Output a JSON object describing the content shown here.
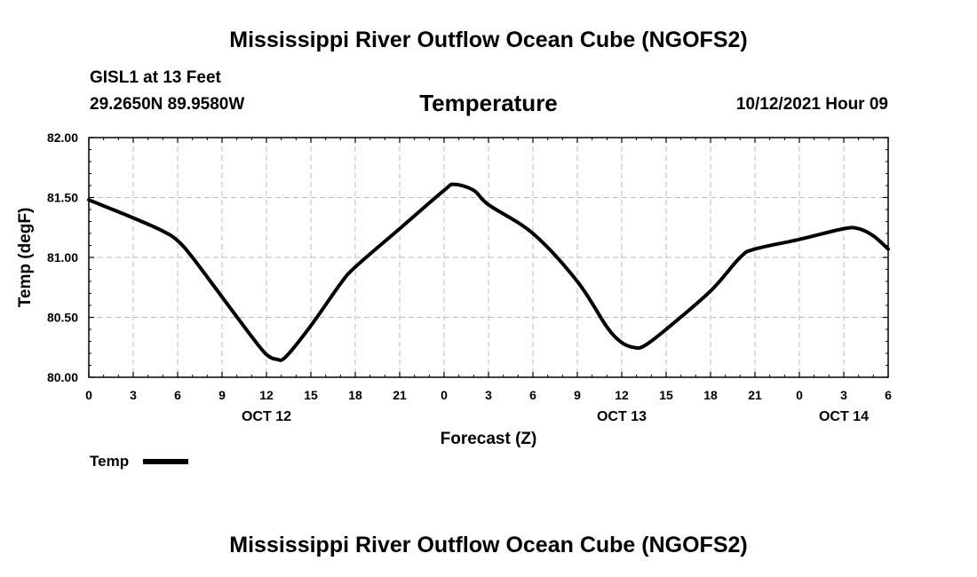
{
  "page": {
    "top_title": "Mississippi River Outflow Ocean Cube (NGOFS2)",
    "bottom_title": "Mississippi River Outflow Ocean Cube (NGOFS2)",
    "station": "GISL1 at 13 Feet",
    "coords": "29.2650N  89.9580W",
    "plot_title": "Temperature",
    "date": "10/12/2021 Hour 09"
  },
  "chart_data": {
    "type": "line",
    "title": "Temperature",
    "xlabel": "Forecast (Z)",
    "ylabel": "Temp (degF)",
    "ylim": [
      80.0,
      82.0
    ],
    "yticks": [
      "80.00",
      "80.50",
      "81.00",
      "81.50",
      "82.00"
    ],
    "xlim": [
      0,
      54
    ],
    "xticks": [
      "0",
      "3",
      "6",
      "9",
      "12",
      "15",
      "18",
      "21",
      "0",
      "3",
      "6",
      "9",
      "12",
      "15",
      "18",
      "21",
      "0",
      "3",
      "6"
    ],
    "day_labels": [
      {
        "label": "OCT 12",
        "hour": 12
      },
      {
        "label": "OCT 13",
        "hour": 36
      },
      {
        "label": "OCT 14",
        "hour": 51
      }
    ],
    "grid": true,
    "legend": "bottom-left",
    "series": [
      {
        "name": "Temp",
        "color": "#000000",
        "x": [
          0,
          3,
          5,
          6,
          7,
          9,
          11,
          12,
          12.7,
          13.3,
          15,
          17,
          18,
          21,
          24,
          24.7,
          26,
          27,
          30,
          33,
          35,
          36,
          36.8,
          37.5,
          39,
          42,
          44,
          45,
          48,
          51,
          52,
          53,
          54
        ],
        "y": [
          81.48,
          81.33,
          81.22,
          81.14,
          81.0,
          80.67,
          80.34,
          80.19,
          80.15,
          80.17,
          80.43,
          80.78,
          80.92,
          81.24,
          81.56,
          81.61,
          81.56,
          81.44,
          81.2,
          80.8,
          80.42,
          80.29,
          80.25,
          80.26,
          80.4,
          80.72,
          81.0,
          81.07,
          81.15,
          81.24,
          81.24,
          81.18,
          81.07
        ]
      }
    ]
  }
}
